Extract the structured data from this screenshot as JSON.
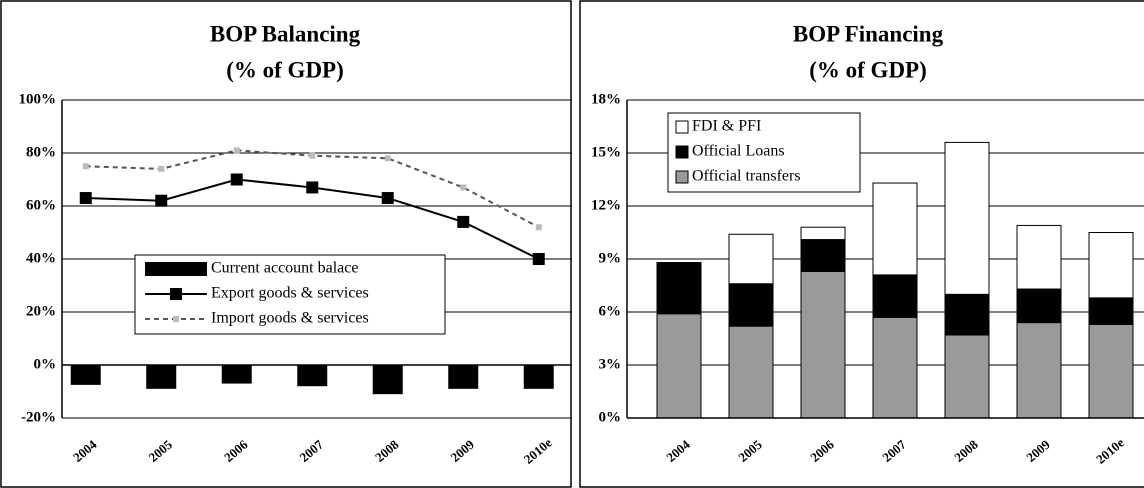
{
  "chart_data": [
    {
      "type": "combo",
      "title": "BOP Balancing",
      "subtitle": "(% of GDP)",
      "categories": [
        "2004",
        "2005",
        "2006",
        "2007",
        "2008",
        "2009",
        "2010e"
      ],
      "ylim": [
        -20,
        100
      ],
      "yticks": [
        {
          "value": -20,
          "label": "-20%"
        },
        {
          "value": 0,
          "label": "0%"
        },
        {
          "value": 20,
          "label": "20%"
        },
        {
          "value": 40,
          "label": "40%"
        },
        {
          "value": 60,
          "label": "60%"
        },
        {
          "value": 80,
          "label": "80%"
        },
        {
          "value": 100,
          "label": "100%"
        }
      ],
      "grid": true,
      "series": [
        {
          "name": "Current account balace",
          "type": "bar",
          "color": "#000000",
          "values": [
            -7.5,
            -9,
            -7,
            -8,
            -11,
            -9,
            -9
          ]
        },
        {
          "name": "Export goods & services",
          "type": "line",
          "color": "#000000",
          "dash": false,
          "values": [
            63,
            62,
            70,
            67,
            63,
            54,
            40
          ]
        },
        {
          "name": "Import goods & services",
          "type": "line",
          "color": "#555555",
          "dash": true,
          "values": [
            75,
            74,
            81,
            79,
            78,
            67,
            52
          ]
        }
      ]
    },
    {
      "type": "stacked_bar",
      "title": "BOP Financing",
      "subtitle": "(% of GDP)",
      "categories": [
        "2004",
        "2005",
        "2006",
        "2007",
        "2008",
        "2009",
        "2010e"
      ],
      "ylim": [
        0,
        18
      ],
      "yticks": [
        {
          "value": 0,
          "label": "0%"
        },
        {
          "value": 3,
          "label": "3%"
        },
        {
          "value": 6,
          "label": "6%"
        },
        {
          "value": 9,
          "label": "9%"
        },
        {
          "value": 12,
          "label": "12%"
        },
        {
          "value": 15,
          "label": "15%"
        },
        {
          "value": 18,
          "label": "18%"
        }
      ],
      "grid": true,
      "series": [
        {
          "name": "Official transfers",
          "color": "#9a9a9a",
          "values": [
            5.9,
            5.2,
            8.3,
            5.7,
            4.7,
            5.4,
            5.3
          ]
        },
        {
          "name": "Official Loans",
          "color": "#000000",
          "values": [
            2.9,
            2.4,
            1.8,
            2.4,
            2.3,
            1.9,
            1.5
          ]
        },
        {
          "name": "FDI & PFI",
          "color": "#ffffff",
          "values": [
            0,
            2.8,
            0.7,
            5.2,
            8.6,
            3.6,
            3.7
          ]
        }
      ]
    }
  ]
}
